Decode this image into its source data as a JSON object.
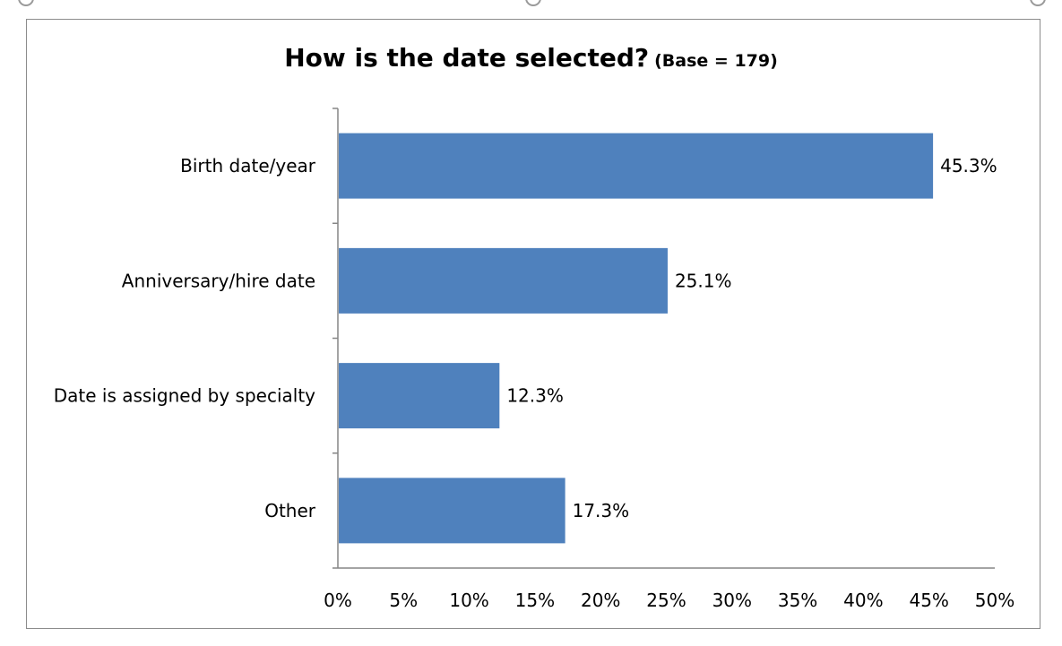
{
  "chart_data": {
    "type": "bar",
    "orientation": "horizontal",
    "title": "How is the date selected?",
    "subtitle": "(Base = 179)",
    "categories": [
      "Birth date/year",
      "Anniversary/hire date",
      "Date is assigned by specialty",
      "Other"
    ],
    "values": [
      45.3,
      25.1,
      12.3,
      17.3
    ],
    "data_labels": [
      "45.3%",
      "25.1%",
      "12.3%",
      "17.3%"
    ],
    "xlim": [
      0,
      50
    ],
    "x_ticks": [
      "0%",
      "5%",
      "10%",
      "15%",
      "20%",
      "25%",
      "30%",
      "35%",
      "40%",
      "45%",
      "50%"
    ],
    "grid": false,
    "legend": "none",
    "colors": {
      "bar": "#4f81bd",
      "axis": "#868686",
      "frame": "#8c8c8c"
    }
  }
}
